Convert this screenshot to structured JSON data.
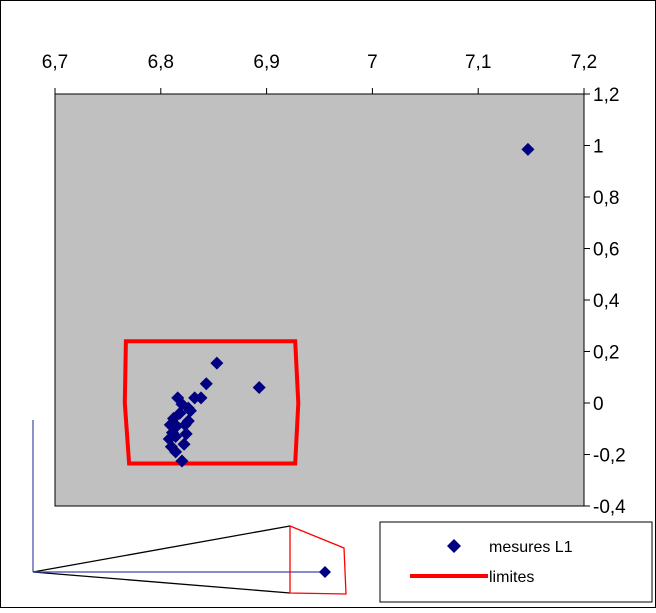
{
  "colors": {
    "background": "#ffffff",
    "plot_area": "#c0c0c0",
    "marker": "#000080",
    "limit_line": "#ff0000",
    "inset_line": "#3f48a8"
  },
  "chart_data": {
    "type": "scatter",
    "title": "",
    "xlabel": "",
    "ylabel": "",
    "xlim": [
      6.7,
      7.2
    ],
    "ylim": [
      -0.4,
      1.2
    ],
    "x_axis_position": "top",
    "y_axis_position": "right",
    "grid": false,
    "legend_position": "bottom-right",
    "x_ticks": [
      {
        "value": 6.7,
        "label": "6,7"
      },
      {
        "value": 6.8,
        "label": "6,8"
      },
      {
        "value": 6.9,
        "label": "6,9"
      },
      {
        "value": 7.0,
        "label": "7"
      },
      {
        "value": 7.1,
        "label": "7,1"
      },
      {
        "value": 7.2,
        "label": "7,2"
      }
    ],
    "y_ticks": [
      {
        "value": 1.2,
        "label": "1,2"
      },
      {
        "value": 1.0,
        "label": "1"
      },
      {
        "value": 0.8,
        "label": "0,8"
      },
      {
        "value": 0.6,
        "label": "0,6"
      },
      {
        "value": 0.4,
        "label": "0,4"
      },
      {
        "value": 0.2,
        "label": "0,2"
      },
      {
        "value": 0.0,
        "label": "0"
      },
      {
        "value": -0.2,
        "label": "-0,2"
      },
      {
        "value": -0.4,
        "label": "-0,4"
      }
    ],
    "series": [
      {
        "name": "mesures L1",
        "type": "scatter",
        "marker": "diamond",
        "points": [
          [
            7.147,
            0.985
          ],
          [
            6.893,
            0.06
          ],
          [
            6.853,
            0.155
          ],
          [
            6.843,
            0.075
          ],
          [
            6.838,
            0.02
          ],
          [
            6.832,
            0.02
          ],
          [
            6.828,
            -0.03
          ],
          [
            6.826,
            -0.07
          ],
          [
            6.824,
            -0.12
          ],
          [
            6.822,
            -0.16
          ],
          [
            6.82,
            -0.005
          ],
          [
            6.818,
            -0.04
          ],
          [
            6.816,
            0.02
          ],
          [
            6.815,
            -0.09
          ],
          [
            6.814,
            -0.13
          ],
          [
            6.812,
            -0.06
          ],
          [
            6.811,
            -0.115
          ],
          [
            6.81,
            -0.17
          ],
          [
            6.809,
            -0.085
          ],
          [
            6.808,
            -0.14
          ],
          [
            6.82,
            -0.225
          ],
          [
            6.814,
            -0.19
          ],
          [
            6.823,
            -0.085
          ],
          [
            6.826,
            -0.02
          ]
        ]
      },
      {
        "name": "limites",
        "type": "line",
        "closed": true,
        "points": [
          [
            6.767,
            0.24
          ],
          [
            6.927,
            0.24
          ],
          [
            6.93,
            0.0
          ],
          [
            6.927,
            -0.235
          ],
          [
            6.77,
            -0.235
          ],
          [
            6.766,
            0.0
          ]
        ]
      }
    ]
  }
}
